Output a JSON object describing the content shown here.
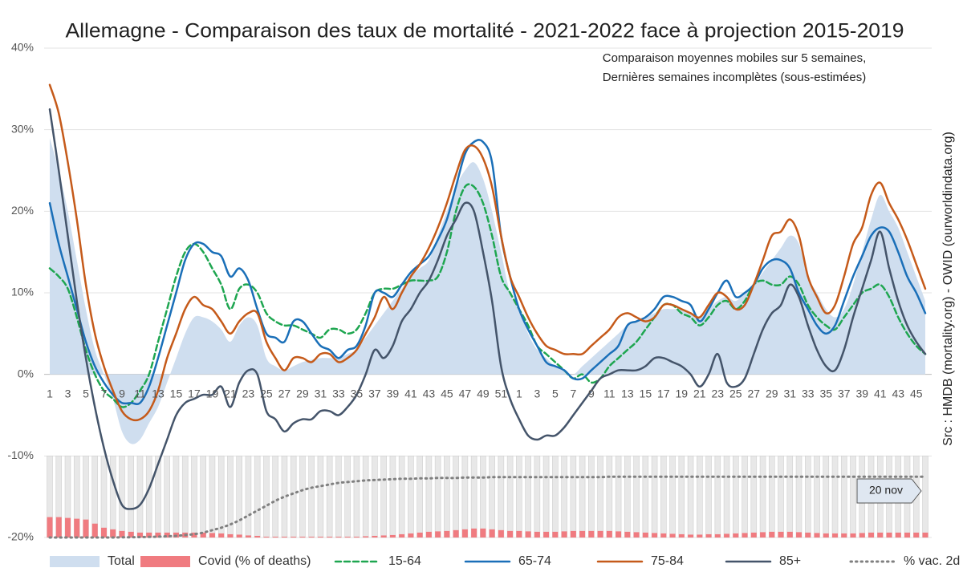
{
  "chart_data": {
    "type": "line",
    "title": "Allemagne - Comparaison des taux de mortalité - 2021-2022 face à projection 2015-2019",
    "subtitle": [
      "Comparaison moyennes mobiles sur 5 semaines,",
      "Dernières semaines incomplètes (sous-estimées)"
    ],
    "source": "Src : HMDB (mortality.org) - OWID (ourworldindata.org)",
    "annotation": "20 nov",
    "categories": [
      "1",
      null,
      "3",
      null,
      "5",
      null,
      "7",
      null,
      "9",
      null,
      "11",
      null,
      "13",
      null,
      "15",
      null,
      "17",
      null,
      "19",
      null,
      "21",
      null,
      "23",
      null,
      "25",
      null,
      "27",
      null,
      "29",
      null,
      "31",
      null,
      "33",
      null,
      "35",
      null,
      "37",
      null,
      "39",
      null,
      "41",
      null,
      "43",
      null,
      "45",
      null,
      "47",
      null,
      "49",
      null,
      "51",
      null,
      "1",
      null,
      "3",
      null,
      "5",
      null,
      "7",
      null,
      "9",
      null,
      "11",
      null,
      "13",
      null,
      "15",
      null,
      "17",
      null,
      "19",
      null,
      "21",
      null,
      "23",
      null,
      "25",
      null,
      "27",
      null,
      "29",
      null,
      "31",
      null,
      "33",
      null,
      "35",
      null,
      "37",
      null,
      "39",
      null,
      "41",
      null,
      "43",
      null,
      "45",
      null
    ],
    "ylim": [
      -20,
      40
    ],
    "yticks": [
      {
        "value": 40,
        "label": "40%"
      },
      {
        "value": 30,
        "label": "30%"
      },
      {
        "value": 20,
        "label": "20%"
      },
      {
        "value": 10,
        "label": "10%"
      },
      {
        "value": 0,
        "label": "0%"
      },
      {
        "value": -10,
        "label": "-10%"
      },
      {
        "value": -20,
        "label": "-20%"
      }
    ],
    "y2lim": [
      0,
      600
    ],
    "grid": true,
    "legend": "bottom",
    "series": [
      {
        "name": "Total",
        "kind": "area",
        "color": "#cfdeef",
        "values": [
          29,
          25,
          20,
          14,
          8,
          3,
          0,
          -3,
          -7,
          -8.5,
          -8,
          -6,
          -4,
          -1,
          2,
          5,
          7,
          7,
          6.5,
          5.5,
          4,
          6,
          7,
          6,
          2,
          1,
          0.5,
          1,
          1.5,
          1.8,
          2,
          2,
          2,
          2.5,
          3,
          4.5,
          6,
          7.5,
          9,
          10.5,
          12,
          13,
          14,
          17,
          20,
          23,
          25,
          26,
          24,
          20,
          15,
          10,
          8,
          5,
          3,
          2,
          1,
          0.5,
          0,
          1,
          2,
          3,
          4,
          5,
          6,
          6.5,
          7,
          7.5,
          8,
          8,
          8,
          7.5,
          7,
          8,
          9,
          9.5,
          9,
          10,
          11,
          12.5,
          14,
          15.5,
          17,
          16,
          12,
          10,
          8,
          7,
          8,
          11,
          15,
          19,
          22,
          20,
          18,
          15,
          12,
          9
        ]
      },
      {
        "name": "Covid (% of deaths)",
        "kind": "bar",
        "axis": "y2",
        "color": "#f07b80",
        "values": [
          25,
          25,
          24,
          23,
          22,
          17,
          12,
          10,
          8,
          7,
          6,
          6,
          6,
          6,
          6,
          6,
          6,
          6,
          5.5,
          5,
          4,
          3.5,
          2.5,
          2,
          1,
          1,
          1,
          1,
          1,
          1,
          1,
          1,
          1,
          1,
          1,
          1.5,
          2,
          2.5,
          3,
          4,
          5,
          6,
          7,
          7.5,
          8,
          9,
          10,
          11,
          11,
          10,
          9,
          8,
          8,
          7.5,
          7,
          7,
          7,
          7.5,
          8,
          8,
          8,
          8,
          8,
          7.5,
          7,
          6.5,
          6,
          5.5,
          5,
          4.5,
          4,
          3.5,
          3.5,
          4,
          4,
          4.5,
          5,
          5.5,
          6,
          6.5,
          7,
          7,
          7,
          6.5,
          6,
          5.5,
          5,
          5,
          5,
          5,
          5.5,
          6,
          6,
          6,
          6,
          6,
          6,
          6
        ]
      },
      {
        "name": "15-64",
        "kind": "line",
        "dash": "7 4",
        "width": 2.5,
        "color": "#1ea650",
        "values": [
          13,
          12,
          10.5,
          7,
          3,
          0,
          -2,
          -3,
          -4,
          -3.5,
          -2,
          0,
          4,
          8,
          12,
          15,
          16,
          15,
          13,
          11,
          8,
          10.5,
          11,
          10,
          7.5,
          6.5,
          6,
          6,
          5.5,
          5,
          4.5,
          5.5,
          5.5,
          5,
          5.5,
          7.5,
          10,
          10.5,
          10.5,
          11,
          11.5,
          11.5,
          11.5,
          12,
          15,
          20,
          23,
          23,
          21,
          17,
          12,
          10,
          8,
          6,
          3.5,
          2.5,
          1.5,
          0.5,
          -0.5,
          0,
          -1,
          -0.5,
          1,
          2,
          3,
          4,
          5.5,
          7,
          8.5,
          8.5,
          7.5,
          7,
          6,
          7,
          8.5,
          9,
          8,
          9,
          11,
          11.5,
          11,
          11,
          12,
          11,
          8.5,
          7,
          6,
          5.5,
          7,
          8.5,
          10,
          10.5,
          11,
          9.5,
          7,
          5,
          3.5,
          2.5
        ]
      },
      {
        "name": "65-74",
        "kind": "line",
        "width": 2.5,
        "color": "#1a6fb8",
        "values": [
          21,
          16,
          12,
          8,
          4,
          1,
          -1,
          -2.5,
          -3.5,
          -3.5,
          -3.5,
          -1.5,
          2,
          6,
          10,
          14,
          16,
          16,
          15,
          14.5,
          12,
          13,
          11.5,
          8,
          5,
          4.5,
          4,
          6.5,
          6.5,
          5,
          3.5,
          3,
          2,
          3,
          3.5,
          6,
          10,
          10,
          9.5,
          11,
          12.5,
          13.5,
          14.5,
          16.5,
          19,
          23,
          27,
          28.5,
          28.5,
          26,
          17,
          12,
          8,
          5.5,
          3.5,
          1.5,
          1,
          0.5,
          -0.5,
          -0.5,
          0.5,
          1.5,
          2.5,
          3.5,
          6,
          6.5,
          7,
          8,
          9.5,
          9.5,
          9,
          8.5,
          6.5,
          8,
          10,
          11.5,
          9.5,
          10,
          11,
          13,
          14,
          14,
          13,
          10,
          8,
          6,
          5,
          6,
          9,
          12,
          14.5,
          17,
          18,
          17.5,
          15,
          12,
          10,
          7.5
        ]
      },
      {
        "name": "75-84",
        "kind": "line",
        "width": 2.5,
        "color": "#c55a1a",
        "values": [
          35.5,
          32,
          26,
          19,
          11,
          5,
          1,
          -2,
          -4.5,
          -5.5,
          -5.5,
          -4.5,
          -2,
          2,
          5,
          8,
          9.5,
          8.5,
          8,
          6.5,
          5,
          6.5,
          7.5,
          7.5,
          4,
          2,
          0.5,
          2,
          2,
          1.5,
          2.5,
          2.5,
          1.5,
          2,
          3,
          5,
          7,
          9.5,
          8,
          10,
          12,
          13.5,
          15.5,
          18,
          21,
          24.5,
          27.5,
          28,
          26.5,
          23,
          17,
          12,
          9.5,
          7,
          5,
          3.5,
          3,
          2.5,
          2.5,
          2.5,
          3.5,
          4.5,
          5.5,
          7,
          7.5,
          7,
          6.5,
          7,
          8.5,
          8.5,
          8,
          7.5,
          7,
          8.5,
          10,
          9.5,
          8,
          8.5,
          11,
          14,
          17,
          17.5,
          19,
          17,
          12,
          9.5,
          7.5,
          8.5,
          12,
          16,
          18,
          22,
          23.5,
          21,
          19,
          16.5,
          13.5,
          10.5
        ]
      },
      {
        "name": "85+",
        "kind": "line",
        "width": 2.5,
        "color": "#44546a",
        "values": [
          32.5,
          25,
          17,
          9,
          2,
          -4,
          -9,
          -13,
          -16,
          -16.5,
          -16,
          -14,
          -11,
          -8,
          -5,
          -3.5,
          -3,
          -2.5,
          -2.5,
          -1.5,
          -4,
          -1,
          0.5,
          0,
          -4.5,
          -5.5,
          -7,
          -6,
          -5.5,
          -5.5,
          -4.5,
          -4.5,
          -5,
          -4,
          -2.5,
          0,
          3,
          2,
          3.5,
          6.5,
          8,
          10,
          11.5,
          14,
          17,
          19,
          21,
          20,
          15,
          9,
          1,
          -3,
          -5.5,
          -7.5,
          -8,
          -7.5,
          -7.5,
          -6.5,
          -5,
          -3.5,
          -2,
          -0.5,
          0,
          0.5,
          0.5,
          0.5,
          1,
          2,
          2,
          1.5,
          1,
          0,
          -1.5,
          0,
          2.5,
          -1,
          -1.5,
          -0.5,
          2.5,
          5.5,
          7.5,
          8.5,
          11,
          9.5,
          6,
          3,
          1,
          0.5,
          3,
          7,
          10.5,
          14,
          17.5,
          13,
          9,
          6,
          4,
          2.5
        ]
      },
      {
        "name": "% vac. 2d",
        "kind": "line",
        "axis": "y2",
        "dash": "1.5 5",
        "width": 3,
        "color": "#808080",
        "values": [
          0,
          0,
          0,
          0,
          0,
          0,
          0,
          0,
          0.2,
          0.3,
          0.5,
          0.7,
          1,
          1.5,
          2,
          3,
          4,
          6,
          9,
          12,
          16,
          21,
          27,
          33,
          39,
          45,
          50,
          54,
          58,
          61,
          63,
          65,
          67,
          68,
          69,
          70,
          70.5,
          71,
          71.5,
          72,
          72,
          72.5,
          72.5,
          73,
          73,
          73,
          73.5,
          73.5,
          73.5,
          74,
          74,
          74,
          74,
          74,
          74,
          74,
          74,
          74,
          74,
          74,
          74,
          74,
          74.5,
          74.5,
          74.5,
          74.5,
          74.5,
          74.5,
          74.5,
          74.5,
          74.5,
          74.5,
          74.5,
          74.5,
          74.5,
          74.5,
          74.5,
          74.5,
          74.5,
          74.5,
          74.5,
          74.5,
          74.5,
          74.5,
          74.5,
          74.5,
          74.5,
          74.5,
          74.5,
          74.5,
          74.5,
          74.5,
          74.5,
          74.5,
          74.5,
          74.5,
          74.5,
          74.5
        ]
      }
    ]
  }
}
